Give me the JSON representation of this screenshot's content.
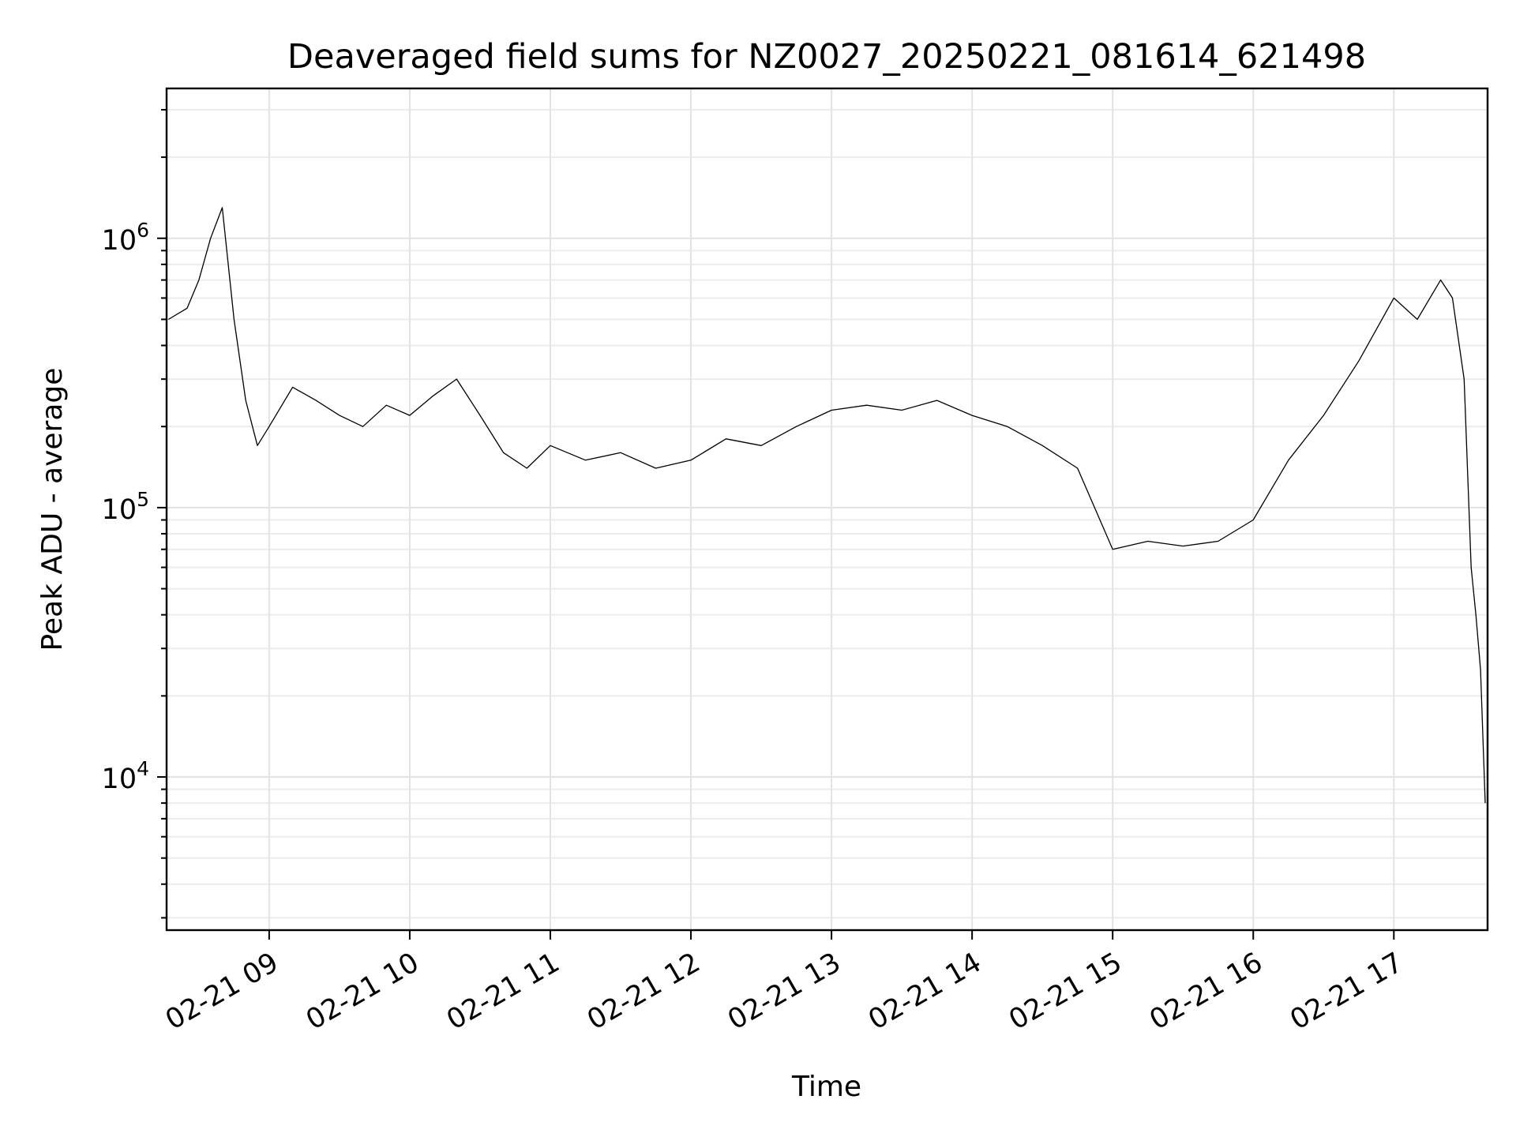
{
  "chart_data": {
    "type": "line",
    "title": "Deaveraged field sums for NZ0027_20250221_081614_621498",
    "xlabel": "Time",
    "ylabel": "Peak ADU - average",
    "yscale": "log",
    "ylim": [
      2700,
      3600000
    ],
    "xlim": [
      "2025-02-21 08:16:14",
      "2025-02-21 17:40:00"
    ],
    "grid": true,
    "legend": "none",
    "line_color": "#000000",
    "x_ticks": [
      {
        "time": "2025-02-21 09:00",
        "label": "02-21 09"
      },
      {
        "time": "2025-02-21 10:00",
        "label": "02-21 10"
      },
      {
        "time": "2025-02-21 11:00",
        "label": "02-21 11"
      },
      {
        "time": "2025-02-21 12:00",
        "label": "02-21 12"
      },
      {
        "time": "2025-02-21 13:00",
        "label": "02-21 13"
      },
      {
        "time": "2025-02-21 14:00",
        "label": "02-21 14"
      },
      {
        "time": "2025-02-21 15:00",
        "label": "02-21 15"
      },
      {
        "time": "2025-02-21 16:00",
        "label": "02-21 16"
      },
      {
        "time": "2025-02-21 17:00",
        "label": "02-21 17"
      }
    ],
    "y_ticks": [
      {
        "value": 10000,
        "base": "10",
        "exp": "4"
      },
      {
        "value": 100000,
        "base": "10",
        "exp": "5"
      },
      {
        "value": 1000000,
        "base": "10",
        "exp": "6"
      }
    ],
    "series": [
      {
        "x": [
          "2025-02-21 08:17",
          "2025-02-21 08:25",
          "2025-02-21 08:30",
          "2025-02-21 08:35",
          "2025-02-21 08:40",
          "2025-02-21 08:45",
          "2025-02-21 08:50",
          "2025-02-21 08:55",
          "2025-02-21 09:00",
          "2025-02-21 09:10",
          "2025-02-21 09:20",
          "2025-02-21 09:30",
          "2025-02-21 09:40",
          "2025-02-21 09:50",
          "2025-02-21 10:00",
          "2025-02-21 10:10",
          "2025-02-21 10:20",
          "2025-02-21 10:30",
          "2025-02-21 10:40",
          "2025-02-21 10:50",
          "2025-02-21 11:00",
          "2025-02-21 11:15",
          "2025-02-21 11:30",
          "2025-02-21 11:45",
          "2025-02-21 12:00",
          "2025-02-21 12:15",
          "2025-02-21 12:30",
          "2025-02-21 12:45",
          "2025-02-21 13:00",
          "2025-02-21 13:15",
          "2025-02-21 13:30",
          "2025-02-21 13:45",
          "2025-02-21 14:00",
          "2025-02-21 14:15",
          "2025-02-21 14:30",
          "2025-02-21 14:45",
          "2025-02-21 15:00",
          "2025-02-21 15:15",
          "2025-02-21 15:30",
          "2025-02-21 15:45",
          "2025-02-21 16:00",
          "2025-02-21 16:15",
          "2025-02-21 16:30",
          "2025-02-21 16:45",
          "2025-02-21 17:00",
          "2025-02-21 17:10",
          "2025-02-21 17:20",
          "2025-02-21 17:25",
          "2025-02-21 17:30",
          "2025-02-21 17:33",
          "2025-02-21 17:35",
          "2025-02-21 17:37",
          "2025-02-21 17:39"
        ],
        "y": [
          500000,
          550000,
          700000,
          1000000,
          1300000,
          500000,
          250000,
          170000,
          200000,
          280000,
          250000,
          220000,
          200000,
          240000,
          220000,
          260000,
          300000,
          220000,
          160000,
          140000,
          170000,
          150000,
          160000,
          140000,
          150000,
          180000,
          170000,
          200000,
          230000,
          240000,
          230000,
          250000,
          220000,
          200000,
          170000,
          140000,
          70000,
          75000,
          72000,
          75000,
          90000,
          150000,
          220000,
          350000,
          600000,
          500000,
          700000,
          600000,
          300000,
          60000,
          40000,
          25000,
          8000
        ]
      }
    ]
  }
}
